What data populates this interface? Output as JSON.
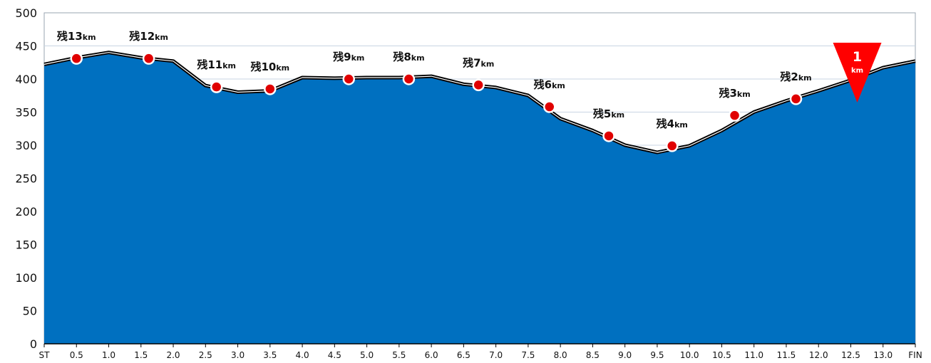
{
  "chart_data": {
    "type": "area",
    "x_tick_labels": [
      "ST",
      "0.5",
      "1.0",
      "1.5",
      "2.0",
      "2.5",
      "3.0",
      "3.5",
      "4.0",
      "4.5",
      "5.0",
      "5.5",
      "6.0",
      "6.5",
      "7.0",
      "7.5",
      "8.0",
      "8.5",
      "9.0",
      "9.5",
      "10.0",
      "10.5",
      "11.0",
      "11.5",
      "12.0",
      "12.5",
      "13.0",
      "FIN"
    ],
    "y_ticks": [
      0,
      50,
      100,
      150,
      200,
      250,
      300,
      350,
      400,
      450,
      500
    ],
    "ylim": [
      0,
      500
    ],
    "xlim": [
      0,
      13.5
    ],
    "grid": "horizontal",
    "colors": {
      "fill": "#0070c0",
      "outline": "#000000",
      "marker": "#e00000",
      "flag": "#ff0000",
      "grid": "#c8d4e3"
    },
    "x": [
      0,
      0.5,
      1.0,
      1.5,
      2.0,
      2.5,
      3.0,
      3.5,
      4.0,
      4.5,
      5.0,
      5.5,
      6.0,
      6.5,
      7.0,
      7.5,
      8.0,
      8.5,
      9.0,
      9.5,
      10.0,
      10.5,
      11.0,
      11.5,
      12.0,
      12.5,
      13.0,
      13.5
    ],
    "elevation": [
      420,
      430,
      438,
      430,
      425,
      388,
      378,
      380,
      400,
      399,
      400,
      400,
      402,
      390,
      385,
      373,
      338,
      320,
      298,
      287,
      297,
      320,
      348,
      365,
      380,
      396,
      415,
      425
    ],
    "markers": [
      {
        "label": "残13",
        "unit": "km",
        "x": 0.5,
        "y": 431
      },
      {
        "label": "残12",
        "unit": "km",
        "x": 1.62,
        "y": 431
      },
      {
        "label": "残11",
        "unit": "km",
        "x": 2.67,
        "y": 388
      },
      {
        "label": "残10",
        "unit": "km",
        "x": 3.5,
        "y": 385
      },
      {
        "label": "残9",
        "unit": "km",
        "x": 4.72,
        "y": 400
      },
      {
        "label": "残8",
        "unit": "km",
        "x": 5.65,
        "y": 400
      },
      {
        "label": "残7",
        "unit": "km",
        "x": 6.73,
        "y": 391
      },
      {
        "label": "残6",
        "unit": "km",
        "x": 7.83,
        "y": 358
      },
      {
        "label": "残5",
        "unit": "km",
        "x": 8.75,
        "y": 314
      },
      {
        "label": "残4",
        "unit": "km",
        "x": 9.73,
        "y": 299
      },
      {
        "label": "残3",
        "unit": "km",
        "x": 10.7,
        "y": 345
      },
      {
        "label": "残2",
        "unit": "km",
        "x": 11.65,
        "y": 370
      }
    ],
    "flag": {
      "number": "1",
      "unit": "km",
      "x": 12.6
    }
  }
}
